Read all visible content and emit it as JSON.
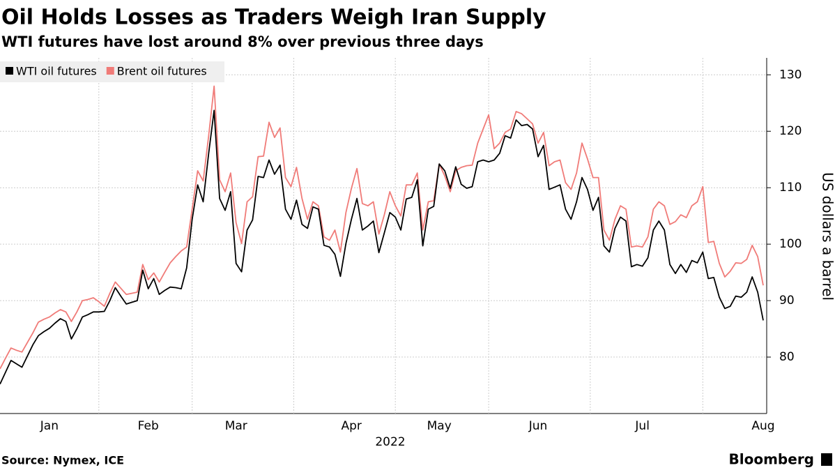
{
  "chart_data": {
    "type": "line",
    "title": "Oil Holds Losses as Traders Weigh Iran Supply",
    "subtitle": "WTI futures have lost around 8% over previous three days",
    "ylabel": "US dollars a barrel",
    "xlabel": "2022",
    "source": "Source: Nymex, ICE",
    "brand": "Bloomberg",
    "legend": "top-left",
    "grid": true,
    "ylim": [
      70,
      133
    ],
    "yticks": [
      80,
      90,
      100,
      110,
      120,
      130
    ],
    "categories": [
      null,
      null,
      null,
      null,
      null,
      null,
      null,
      null,
      null,
      "Jan",
      null,
      null,
      null,
      null,
      null,
      null,
      null,
      null,
      null,
      null,
      null,
      null,
      null,
      null,
      null,
      null,
      null,
      "Feb",
      null,
      null,
      null,
      null,
      null,
      null,
      null,
      null,
      null,
      null,
      null,
      null,
      null,
      null,
      null,
      "Mar",
      null,
      null,
      null,
      null,
      null,
      null,
      null,
      null,
      null,
      null,
      null,
      null,
      null,
      null,
      null,
      null,
      null,
      null,
      null,
      null,
      "Apr",
      null,
      null,
      null,
      null,
      null,
      null,
      null,
      null,
      null,
      null,
      null,
      null,
      null,
      null,
      null,
      "May",
      null,
      null,
      null,
      null,
      null,
      null,
      null,
      null,
      null,
      null,
      null,
      null,
      null,
      null,
      null,
      null,
      null,
      "Jun",
      null,
      null,
      null,
      null,
      null,
      null,
      null,
      null,
      null,
      null,
      null,
      null,
      null,
      null,
      null,
      null,
      null,
      null,
      "Jul",
      null,
      null,
      null,
      null,
      null,
      null,
      null,
      null,
      null,
      null,
      null,
      null,
      null,
      null,
      null,
      null,
      null,
      null,
      null,
      null,
      null,
      "Aug"
    ],
    "series": [
      {
        "name": "WTI oil futures",
        "color": "#000000",
        "values": [
          75.2,
          77.3,
          79.4,
          78.8,
          78.2,
          80.2,
          82.2,
          83.8,
          84.5,
          85.1,
          86.0,
          86.8,
          86.3,
          83.2,
          85.0,
          87.1,
          87.5,
          88.0,
          88.0,
          88.1,
          90.0,
          92.3,
          90.8,
          89.4,
          89.7,
          90.0,
          95.4,
          92.1,
          93.9,
          91.1,
          91.8,
          92.4,
          92.3,
          92.1,
          95.8,
          104.4,
          110.5,
          107.5,
          116.1,
          123.7,
          108.1,
          106.0,
          109.3,
          96.6,
          95.1,
          102.5,
          104.3,
          112.0,
          111.8,
          114.9,
          112.4,
          114.0,
          106.2,
          104.4,
          107.8,
          103.5,
          102.8,
          106.6,
          106.2,
          99.8,
          99.5,
          98.2,
          94.3,
          100.1,
          104.4,
          108.1,
          102.5,
          103.2,
          104.1,
          98.5,
          102.0,
          105.6,
          104.8,
          102.5,
          108.0,
          108.3,
          111.4,
          99.7,
          106.2,
          106.7,
          114.2,
          113.0,
          109.9,
          113.7,
          110.6,
          109.9,
          110.2,
          114.6,
          114.9,
          114.6,
          114.9,
          116.1,
          119.2,
          118.8,
          122.0,
          121.0,
          121.2,
          120.4,
          115.5,
          117.5,
          109.7,
          110.1,
          110.5,
          106.2,
          104.4,
          107.5,
          111.8,
          109.7,
          106.0,
          108.3,
          99.7,
          98.6,
          102.8,
          104.8,
          104.1,
          96.0,
          96.4,
          96.1,
          97.6,
          102.5,
          104.1,
          102.5,
          96.4,
          94.8,
          96.4,
          95.0,
          97.1,
          96.7,
          98.6,
          93.9,
          94.1,
          90.6,
          88.6,
          89.0,
          90.8,
          90.6,
          91.5,
          94.2,
          91.5,
          86.5
        ]
      },
      {
        "name": "Brent oil futures",
        "color": "#f07b78",
        "values": [
          77.9,
          79.8,
          81.6,
          81.2,
          80.9,
          82.6,
          84.3,
          86.2,
          86.7,
          87.1,
          87.8,
          88.4,
          88.0,
          86.3,
          88.0,
          90.0,
          90.2,
          90.5,
          89.8,
          89.0,
          91.3,
          93.3,
          92.2,
          91.1,
          91.3,
          91.5,
          96.4,
          93.7,
          94.9,
          93.3,
          95.0,
          96.7,
          97.8,
          98.8,
          99.5,
          106.2,
          113.0,
          111.2,
          119.2,
          128.0,
          111.4,
          109.3,
          112.6,
          103.8,
          100.1,
          107.5,
          108.4,
          115.5,
          115.6,
          121.6,
          118.9,
          120.6,
          111.8,
          110.2,
          113.6,
          108.1,
          104.4,
          107.5,
          106.8,
          101.3,
          100.7,
          102.5,
          98.6,
          105.6,
          109.9,
          113.4,
          107.2,
          106.8,
          107.5,
          101.8,
          105.2,
          109.3,
          106.8,
          105.0,
          110.5,
          110.5,
          112.6,
          102.5,
          107.5,
          107.7,
          114.2,
          112.1,
          109.3,
          113.0,
          113.6,
          113.9,
          114.0,
          117.9,
          120.4,
          122.9,
          116.9,
          117.9,
          119.8,
          120.4,
          123.5,
          123.1,
          122.2,
          121.3,
          117.9,
          119.8,
          113.9,
          114.6,
          114.9,
          110.9,
          109.7,
          112.6,
          117.9,
          115.1,
          111.8,
          111.8,
          102.5,
          100.7,
          104.4,
          106.8,
          106.2,
          99.5,
          99.7,
          99.5,
          101.3,
          106.2,
          107.5,
          106.8,
          103.5,
          104.0,
          105.2,
          104.7,
          106.8,
          107.5,
          110.2,
          100.3,
          100.5,
          96.6,
          94.2,
          95.2,
          96.7,
          96.6,
          97.3,
          99.8,
          97.8,
          92.7
        ]
      }
    ]
  }
}
